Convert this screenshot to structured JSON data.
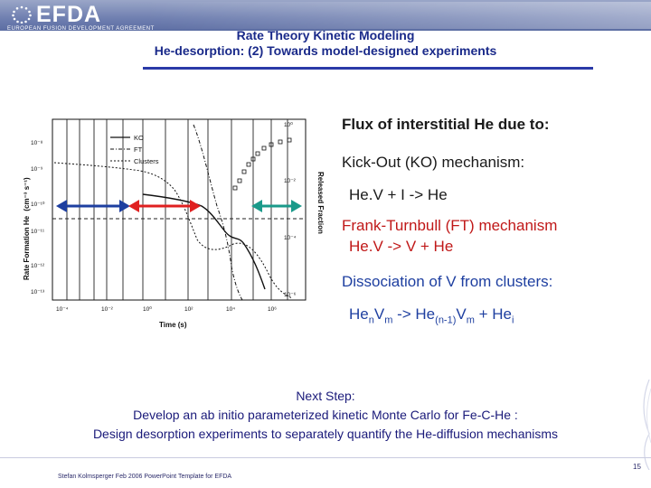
{
  "header": {
    "logo_text": "EFDA",
    "logo_subtitle": "EUROPEAN FUSION DEVELOPMENT AGREEMENT"
  },
  "title": {
    "line1": "Rate Theory Kinetic Modeling",
    "line2": "He-desorption: (2) Towards model-designed experiments"
  },
  "chart": {
    "y_left_label": "Rate Formation He",
    "y_left_unit": "(cm⁻³ s⁻¹)",
    "y_right_label": "Released Fraction",
    "x_label": "Time (s)",
    "legend": [
      "KO",
      "FT",
      "Clusters"
    ],
    "y_left_ticks": [
      "10⁻¹⁴",
      "10⁻¹³",
      "10⁻¹²",
      "10⁻¹¹",
      "10⁻¹⁰",
      "10⁻⁹",
      "10⁻⁸"
    ],
    "y_right_ticks": [
      "10⁰",
      "10⁻²",
      "10⁻⁴",
      "10⁻⁶"
    ],
    "x_ticks": [
      "10⁻⁴",
      "10⁻²",
      "10⁰",
      "10²",
      "10⁴",
      "10⁶"
    ],
    "arrow_colors": [
      "#1e3fa0",
      "#e02020",
      "#1a9a8a"
    ]
  },
  "bullets": {
    "b1": "Flux of interstitial He due to:",
    "b2": "Kick-Out (KO) mechanism:",
    "b3": "He.V + I -> He",
    "b4": "Frank-Turnbull (FT) mechanism",
    "b5": "He.V -> V + He",
    "b6": "Dissociation of V from clusters:",
    "b7_he": "He",
    "b7_n": "n",
    "b7_v": "V",
    "b7_m": "m",
    "b7_arrow": " -> He",
    "b7_nm1": "(n-1)",
    "b7_v2": "V",
    "b7_m2": "m",
    "b7_plus": " + He",
    "b7_i": "i"
  },
  "next_step": {
    "line1": "Next Step:",
    "line2": "Develop an ab initio parameterized kinetic Monte Carlo for Fe-C-He :",
    "line3": "Design desorption experiments  to separately quantify the He-diffusion mechanisms"
  },
  "footer": {
    "text": "Stefan Kolmsperger Feb 2006 PowerPoint Template for EFDA",
    "page": "15"
  }
}
